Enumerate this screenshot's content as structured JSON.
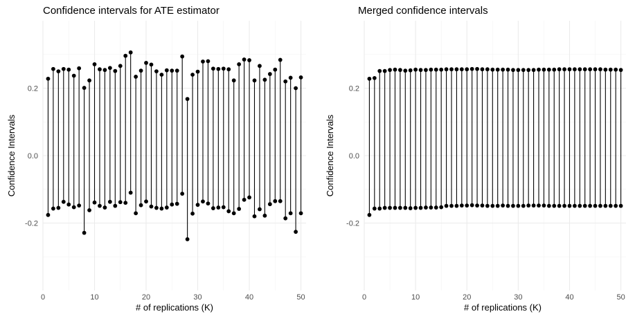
{
  "chart_data": [
    {
      "type": "errorbar",
      "title": "Confidence intervals for ATE estimator",
      "xlabel": "# of replications (K)",
      "ylabel": "Confidence Intervals",
      "xlim": [
        0,
        51
      ],
      "ylim": [
        -0.4,
        0.4
      ],
      "xticks": [
        0,
        10,
        20,
        30,
        40,
        50
      ],
      "yticks": [
        -0.2,
        0.0,
        0.2
      ],
      "ytick_labels": [
        "-0.2",
        "0.0",
        "0.2"
      ],
      "grid": true,
      "x": [
        1,
        2,
        3,
        4,
        5,
        6,
        7,
        8,
        9,
        10,
        11,
        12,
        13,
        14,
        15,
        16,
        17,
        18,
        19,
        20,
        21,
        22,
        23,
        24,
        25,
        26,
        27,
        28,
        29,
        30,
        31,
        32,
        33,
        34,
        35,
        36,
        37,
        38,
        39,
        40,
        41,
        42,
        43,
        44,
        45,
        46,
        47,
        48,
        49,
        50
      ],
      "upper": [
        0.228,
        0.257,
        0.25,
        0.257,
        0.255,
        0.237,
        0.259,
        0.201,
        0.223,
        0.271,
        0.256,
        0.254,
        0.26,
        0.251,
        0.266,
        0.296,
        0.306,
        0.234,
        0.252,
        0.275,
        0.27,
        0.25,
        0.24,
        0.253,
        0.252,
        0.252,
        0.294,
        0.168,
        0.24,
        0.249,
        0.279,
        0.28,
        0.258,
        0.257,
        0.258,
        0.256,
        0.223,
        0.271,
        0.285,
        0.283,
        0.223,
        0.266,
        0.225,
        0.242,
        0.255,
        0.284,
        0.22,
        0.231,
        0.2,
        0.232
      ],
      "lower": [
        -0.176,
        -0.157,
        -0.155,
        -0.137,
        -0.145,
        -0.153,
        -0.148,
        -0.229,
        -0.162,
        -0.139,
        -0.149,
        -0.154,
        -0.137,
        -0.149,
        -0.138,
        -0.14,
        -0.11,
        -0.171,
        -0.147,
        -0.136,
        -0.151,
        -0.155,
        -0.157,
        -0.154,
        -0.145,
        -0.143,
        -0.113,
        -0.248,
        -0.172,
        -0.146,
        -0.136,
        -0.142,
        -0.156,
        -0.154,
        -0.153,
        -0.165,
        -0.171,
        -0.158,
        -0.131,
        -0.124,
        -0.18,
        -0.159,
        -0.178,
        -0.144,
        -0.135,
        -0.135,
        -0.186,
        -0.171,
        -0.226,
        -0.171
      ]
    },
    {
      "type": "errorbar",
      "title": "Merged confidence intervals",
      "xlabel": "# of replications (K)",
      "ylabel": "Confidence Intervals",
      "xlim": [
        0,
        51
      ],
      "ylim": [
        -0.4,
        0.4
      ],
      "xticks": [
        0,
        10,
        20,
        30,
        40,
        50
      ],
      "yticks": [
        -0.2,
        0.0,
        0.2
      ],
      "ytick_labels": [
        "-0.2",
        "0.0",
        "0.2"
      ],
      "grid": true,
      "x": [
        1,
        2,
        3,
        4,
        5,
        6,
        7,
        8,
        9,
        10,
        11,
        12,
        13,
        14,
        15,
        16,
        17,
        18,
        19,
        20,
        21,
        22,
        23,
        24,
        25,
        26,
        27,
        28,
        29,
        30,
        31,
        32,
        33,
        34,
        35,
        36,
        37,
        38,
        39,
        40,
        41,
        42,
        43,
        44,
        45,
        46,
        47,
        48,
        49,
        50
      ],
      "upper": [
        0.228,
        0.23,
        0.251,
        0.251,
        0.254,
        0.255,
        0.254,
        0.252,
        0.253,
        0.255,
        0.254,
        0.254,
        0.255,
        0.255,
        0.255,
        0.256,
        0.256,
        0.256,
        0.256,
        0.256,
        0.257,
        0.257,
        0.256,
        0.256,
        0.255,
        0.255,
        0.255,
        0.255,
        0.254,
        0.254,
        0.254,
        0.254,
        0.254,
        0.255,
        0.255,
        0.255,
        0.255,
        0.256,
        0.256,
        0.256,
        0.256,
        0.256,
        0.256,
        0.256,
        0.256,
        0.256,
        0.255,
        0.255,
        0.255,
        0.254
      ],
      "lower": [
        -0.176,
        -0.157,
        -0.157,
        -0.155,
        -0.155,
        -0.155,
        -0.155,
        -0.155,
        -0.156,
        -0.155,
        -0.155,
        -0.154,
        -0.154,
        -0.154,
        -0.153,
        -0.149,
        -0.149,
        -0.149,
        -0.148,
        -0.148,
        -0.147,
        -0.148,
        -0.148,
        -0.149,
        -0.149,
        -0.149,
        -0.148,
        -0.149,
        -0.149,
        -0.149,
        -0.149,
        -0.148,
        -0.148,
        -0.148,
        -0.148,
        -0.149,
        -0.149,
        -0.149,
        -0.149,
        -0.149,
        -0.149,
        -0.149,
        -0.149,
        -0.149,
        -0.149,
        -0.149,
        -0.149,
        -0.149,
        -0.149,
        -0.149
      ]
    }
  ]
}
